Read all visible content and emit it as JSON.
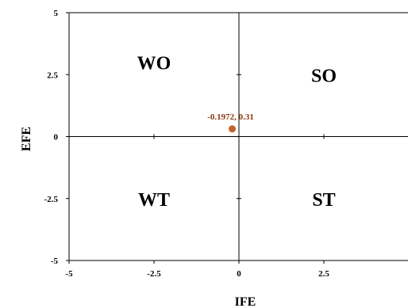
{
  "chart_data": {
    "type": "scatter",
    "title": "",
    "xlabel": "IFE",
    "ylabel": "EFE",
    "xlim": [
      -5,
      5
    ],
    "ylim": [
      -5,
      5
    ],
    "x_ticks": [
      -5,
      -2.5,
      0,
      2.5
    ],
    "y_ticks": [
      -5,
      -2.5,
      0,
      2.5,
      5
    ],
    "x_tick_labels": [
      "-5",
      "-2.5",
      "0",
      "2.5"
    ],
    "y_tick_labels": [
      "-5",
      "-2.5",
      "0",
      "2.5",
      "5"
    ],
    "grid": false,
    "crosshair_at_origin": true,
    "points": [
      {
        "x": -0.1972,
        "y": 0.31,
        "label": "-0.1972, 0.31"
      }
    ],
    "point_color": "#c0622a",
    "label_color": "#8b3a10",
    "quadrants": [
      {
        "label": "WO",
        "x": -2.5,
        "y": 3.0
      },
      {
        "label": "SO",
        "x": 2.5,
        "y": 2.5
      },
      {
        "label": "WT",
        "x": -2.5,
        "y": -2.5
      },
      {
        "label": "ST",
        "x": 2.5,
        "y": -2.5
      }
    ]
  }
}
